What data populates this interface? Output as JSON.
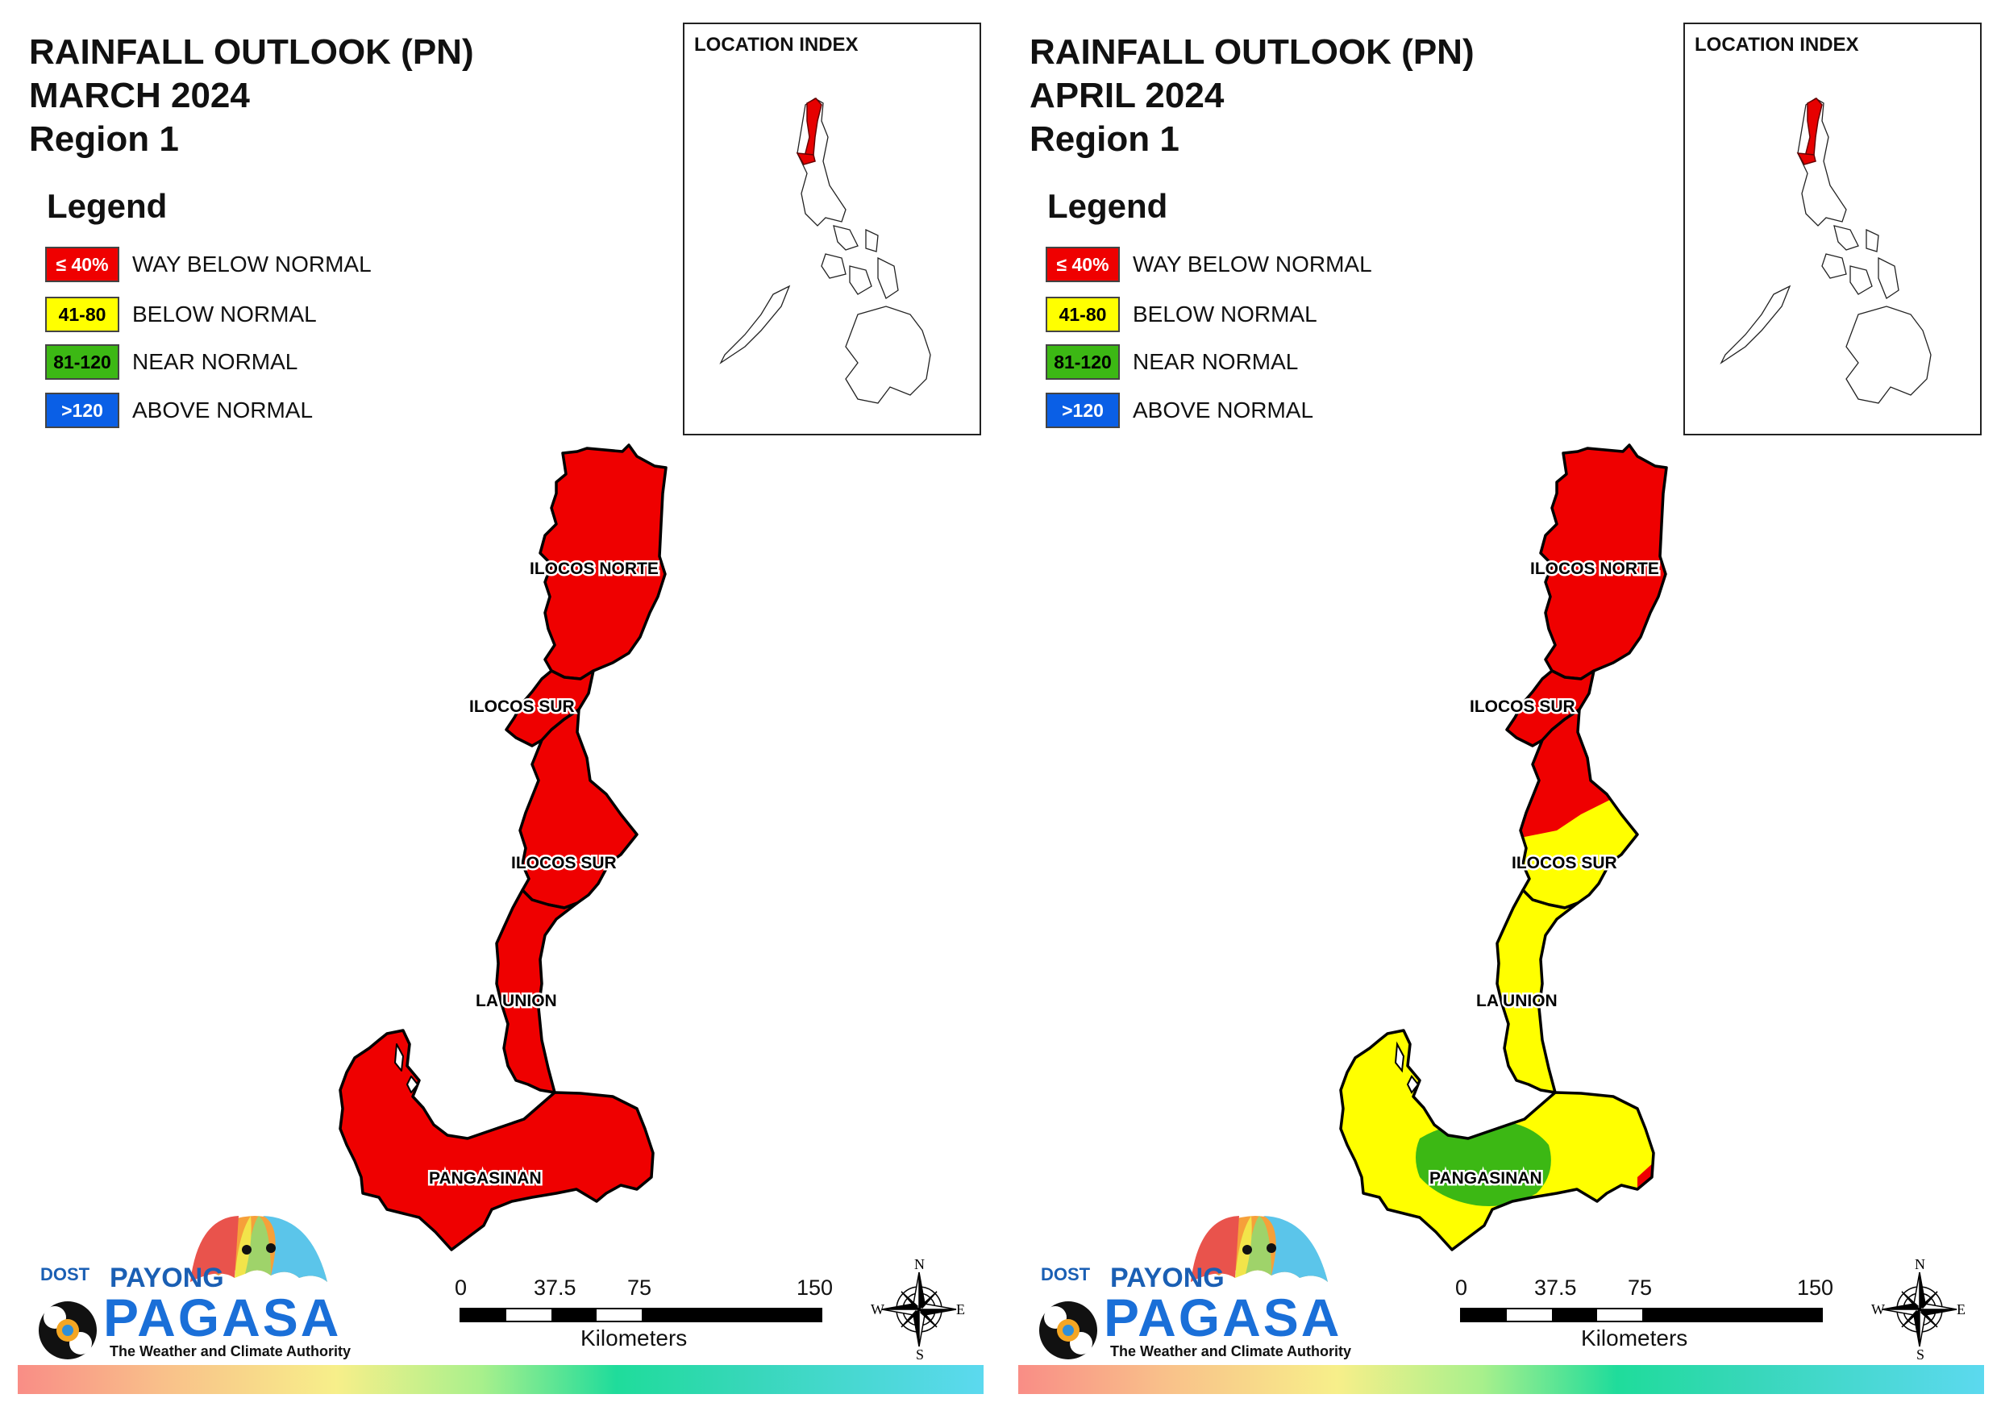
{
  "panels": [
    {
      "id": "march",
      "title_line1": "RAINFALL OUTLOOK (PN)",
      "title_line2": "MARCH 2024",
      "title_line3": "Region 1",
      "legend_title": "Legend",
      "location_index_title": "LOCATION INDEX",
      "provinces": [
        {
          "label": "ILOCOS NORTE",
          "category": "way_below_normal"
        },
        {
          "label": "ILOCOS SUR",
          "category": "way_below_normal"
        },
        {
          "label": "ILOCOS SUR",
          "category": "way_below_normal"
        },
        {
          "label": "LA UNION",
          "category": "way_below_normal"
        },
        {
          "label": "PANGASINAN",
          "category": "way_below_normal"
        }
      ]
    },
    {
      "id": "april",
      "title_line1": "RAINFALL OUTLOOK (PN)",
      "title_line2": "APRIL 2024",
      "title_line3": "Region 1",
      "legend_title": "Legend",
      "location_index_title": "LOCATION INDEX",
      "provinces": [
        {
          "label": "ILOCOS NORTE",
          "category": "way_below_normal"
        },
        {
          "label": "ILOCOS SUR",
          "category": "way_below_normal"
        },
        {
          "label": "ILOCOS SUR",
          "category": "below_normal"
        },
        {
          "label": "LA UNION",
          "category": "below_normal"
        },
        {
          "label": "PANGASINAN",
          "category": "below_normal"
        }
      ]
    }
  ],
  "legend": [
    {
      "key": "way_below_normal",
      "range": "≤ 40%",
      "label": "WAY BELOW NORMAL",
      "color": "#ef0000",
      "text_color": "#ffffff"
    },
    {
      "key": "below_normal",
      "range": "41-80",
      "label": "BELOW NORMAL",
      "color": "#ffff00",
      "text_color": "#000000"
    },
    {
      "key": "near_normal",
      "range": "81-120",
      "label": "NEAR NORMAL",
      "color": "#3cb814",
      "text_color": "#000000"
    },
    {
      "key": "above_normal",
      "range": ">120",
      "label": "ABOVE NORMAL",
      "color": "#0a5fe6",
      "text_color": "#ffffff"
    }
  ],
  "scale": {
    "ticks": [
      "0",
      "37.5",
      "75",
      "150"
    ],
    "unit": "Kilometers"
  },
  "compass": {
    "n": "N",
    "s": "S",
    "e": "E",
    "w": "W"
  },
  "logo": {
    "agency": "DOST",
    "brand_top": "PAYONG",
    "brand_main": "PAGASA",
    "tagline": "The Weather and Climate Authority"
  }
}
